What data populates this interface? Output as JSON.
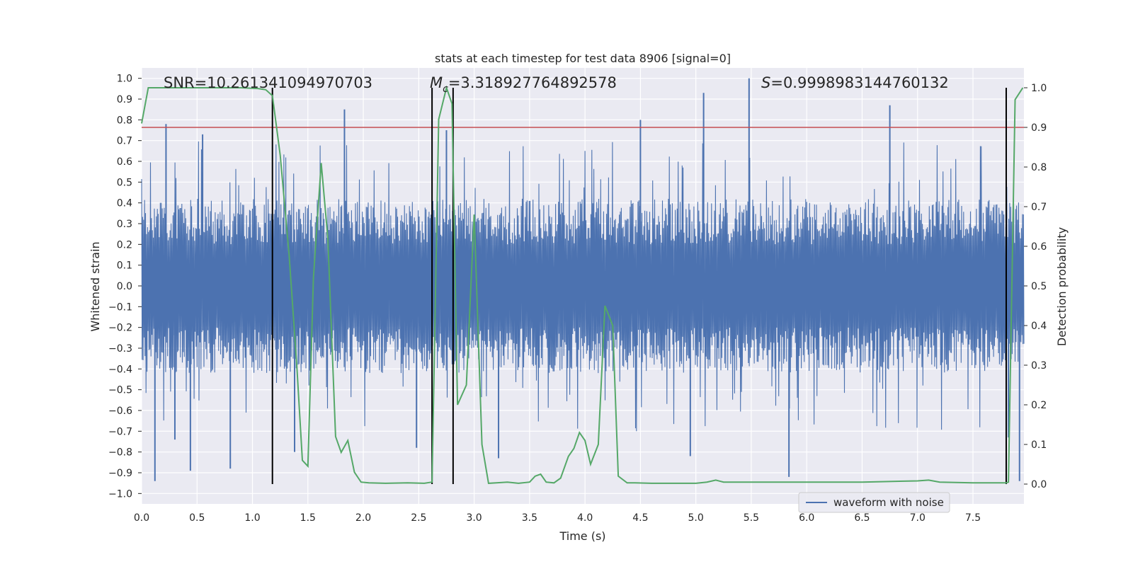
{
  "chart_data": {
    "type": "line",
    "title": "stats at each timestep for test data 8906 [signal=0]",
    "xlabel": "Time (s)",
    "ylabel_left": "Whitened strain",
    "ylabel_right": "Detection probability",
    "xlim": [
      0.0,
      7.96
    ],
    "ylim_left": [
      -1.05,
      1.05
    ],
    "ylim_right": [
      -0.05,
      1.05
    ],
    "x_ticks": [
      0.0,
      0.5,
      1.0,
      1.5,
      2.0,
      2.5,
      3.0,
      3.5,
      4.0,
      4.5,
      5.0,
      5.5,
      6.0,
      6.5,
      7.0,
      7.5
    ],
    "x_tick_labels": [
      "0.0",
      "0.5",
      "1.0",
      "1.5",
      "2.0",
      "2.5",
      "3.0",
      "3.5",
      "4.0",
      "4.5",
      "5.0",
      "5.5",
      "6.0",
      "6.5",
      "7.0",
      "7.5"
    ],
    "y_left_ticks": [
      1.0,
      0.9,
      0.8,
      0.7,
      0.6,
      0.5,
      0.4,
      0.3,
      0.2,
      0.1,
      0.0,
      -0.1,
      -0.2,
      -0.3,
      -0.4,
      -0.5,
      -0.6,
      -0.7,
      -0.8,
      -0.9,
      -1.0
    ],
    "y_left_tick_labels": [
      "1.0",
      "0.9",
      "0.8",
      "0.7",
      "0.6",
      "0.5",
      "0.4",
      "0.3",
      "0.2",
      "0.1",
      "0.0",
      "−0.1",
      "−0.2",
      "−0.3",
      "−0.4",
      "−0.5",
      "−0.6",
      "−0.7",
      "−0.8",
      "−0.9",
      "−1.0"
    ],
    "y_right_ticks": [
      1.0,
      0.9,
      0.8,
      0.7,
      0.6,
      0.5,
      0.4,
      0.3,
      0.2,
      0.1,
      0.0
    ],
    "y_right_tick_labels": [
      "1.0",
      "0.9",
      "0.8",
      "0.7",
      "0.6",
      "0.5",
      "0.4",
      "0.3",
      "0.2",
      "0.1",
      "0.0"
    ],
    "grid": true,
    "legend_position": "lower-center",
    "annotations": {
      "snr": "SNR=10.261341094970703",
      "mc_symbol": "M",
      "mc_sub": "c",
      "mc_value": "=3.318927764892578",
      "s_symbol": "S",
      "s_value": "=0.9998983144760132"
    },
    "series": [
      {
        "name": "waveform with noise",
        "color": "#4c72b0",
        "axis": "left",
        "kind": "noise",
        "envelope": {
          "top_typical": 0.45,
          "bottom_typical": -0.45
        },
        "spikes": [
          {
            "x": 0.12,
            "y": -0.94
          },
          {
            "x": 0.22,
            "y": 0.78
          },
          {
            "x": 0.3,
            "y": -0.74
          },
          {
            "x": 0.44,
            "y": -0.89
          },
          {
            "x": 0.55,
            "y": 0.73
          },
          {
            "x": 0.8,
            "y": -0.88
          },
          {
            "x": 1.38,
            "y": -0.8
          },
          {
            "x": 1.83,
            "y": 0.85
          },
          {
            "x": 2.48,
            "y": -0.78
          },
          {
            "x": 2.75,
            "y": 0.75
          },
          {
            "x": 3.22,
            "y": -0.83
          },
          {
            "x": 4.5,
            "y": 0.8
          },
          {
            "x": 4.95,
            "y": -0.82
          },
          {
            "x": 5.07,
            "y": 0.93
          },
          {
            "x": 5.48,
            "y": 1.0
          },
          {
            "x": 5.84,
            "y": -0.92
          },
          {
            "x": 6.75,
            "y": 0.87
          },
          {
            "x": 7.82,
            "y": -0.73
          },
          {
            "x": 7.92,
            "y": -0.94
          }
        ]
      },
      {
        "name": "",
        "color": "#55a868",
        "axis": "right",
        "kind": "line",
        "x": [
          0.0,
          0.06,
          0.1,
          0.2,
          0.3,
          0.5,
          0.7,
          0.9,
          1.05,
          1.12,
          1.18,
          1.25,
          1.33,
          1.4,
          1.45,
          1.5,
          1.55,
          1.62,
          1.68,
          1.75,
          1.8,
          1.86,
          1.92,
          1.98,
          2.05,
          2.2,
          2.4,
          2.55,
          2.62,
          2.68,
          2.75,
          2.8,
          2.85,
          2.93,
          3.0,
          3.07,
          3.13,
          3.2,
          3.3,
          3.4,
          3.5,
          3.55,
          3.6,
          3.65,
          3.72,
          3.78,
          3.85,
          3.9,
          3.95,
          4.0,
          4.05,
          4.12,
          4.18,
          4.25,
          4.3,
          4.38,
          4.45,
          4.6,
          4.8,
          5.0,
          5.1,
          5.18,
          5.25,
          5.5,
          5.8,
          6.5,
          7.0,
          7.1,
          7.2,
          7.5,
          7.7,
          7.8,
          7.82,
          7.88,
          7.95
        ],
        "y": [
          0.91,
          1.0,
          1.0,
          1.0,
          1.0,
          1.0,
          1.0,
          1.0,
          0.998,
          0.995,
          0.98,
          0.83,
          0.58,
          0.3,
          0.06,
          0.045,
          0.52,
          0.81,
          0.62,
          0.12,
          0.08,
          0.11,
          0.03,
          0.005,
          0.003,
          0.002,
          0.003,
          0.002,
          0.005,
          0.92,
          1.0,
          0.96,
          0.2,
          0.25,
          0.68,
          0.1,
          0.002,
          0.003,
          0.005,
          0.002,
          0.005,
          0.02,
          0.025,
          0.005,
          0.003,
          0.015,
          0.07,
          0.09,
          0.13,
          0.11,
          0.05,
          0.1,
          0.45,
          0.4,
          0.02,
          0.003,
          0.003,
          0.002,
          0.002,
          0.002,
          0.005,
          0.01,
          0.005,
          0.005,
          0.005,
          0.005,
          0.008,
          0.01,
          0.005,
          0.003,
          0.003,
          0.003,
          0.005,
          0.97,
          1.0
        ]
      }
    ],
    "threshold": {
      "value": 0.9,
      "axis": "right",
      "color": "#c44e52"
    },
    "vertical_markers": [
      {
        "x": 1.18,
        "from": 0.0,
        "to": 1.0
      },
      {
        "x": 2.62,
        "from": 0.0,
        "to": 1.0
      },
      {
        "x": 2.81,
        "from": 0.0,
        "to": 1.0
      },
      {
        "x": 7.8,
        "from": 0.0,
        "to": 1.0
      }
    ]
  }
}
